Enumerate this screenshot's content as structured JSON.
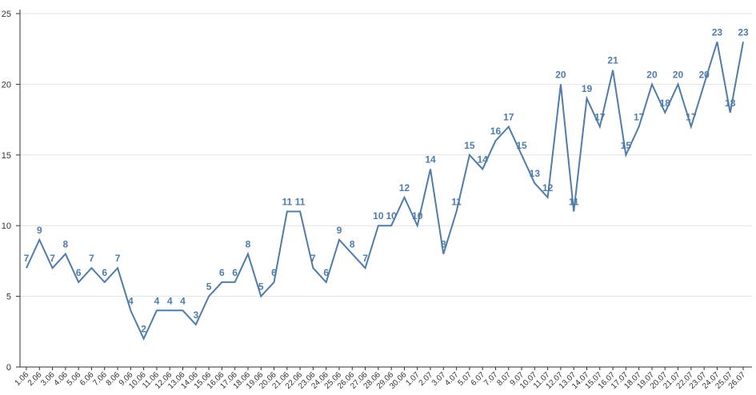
{
  "chart_data": {
    "type": "line",
    "categories": [
      "1.06",
      "2.06",
      "3.06",
      "4.06",
      "5.06",
      "6.06",
      "7.06",
      "8.06",
      "9.06",
      "10.06",
      "11.06",
      "12.06",
      "13.06",
      "14.06",
      "15.06",
      "16.06",
      "17.06",
      "18.06",
      "19.06",
      "20.06",
      "21.06",
      "22.06",
      "23.06",
      "24.06",
      "25.06",
      "26.06",
      "27.06",
      "28.06",
      "29.06",
      "30.06",
      "1.07",
      "2.07",
      "3.07",
      "4.07",
      "5.07",
      "6.07",
      "7.07",
      "8.07",
      "9.07",
      "10.07",
      "11.07",
      "12.07",
      "13.07",
      "14.07",
      "15.07",
      "16.07",
      "17.07",
      "18.07",
      "19.07",
      "20.07",
      "21.07",
      "22.07",
      "23.07",
      "24.07",
      "25.07",
      "26.07"
    ],
    "values": [
      7,
      9,
      7,
      8,
      6,
      7,
      6,
      7,
      4,
      2,
      4,
      4,
      4,
      3,
      5,
      6,
      6,
      8,
      5,
      6,
      11,
      11,
      7,
      6,
      9,
      8,
      7,
      10,
      10,
      12,
      10,
      14,
      8,
      11,
      15,
      14,
      16,
      17,
      15,
      13,
      12,
      20,
      11,
      19,
      17,
      21,
      15,
      17,
      20,
      18,
      20,
      17,
      20,
      23,
      18,
      23
    ],
    "color": "#4f7ca9",
    "ylim": [
      0,
      25
    ],
    "yticks": [
      0,
      5,
      10,
      15,
      20,
      25
    ],
    "grid": true
  }
}
